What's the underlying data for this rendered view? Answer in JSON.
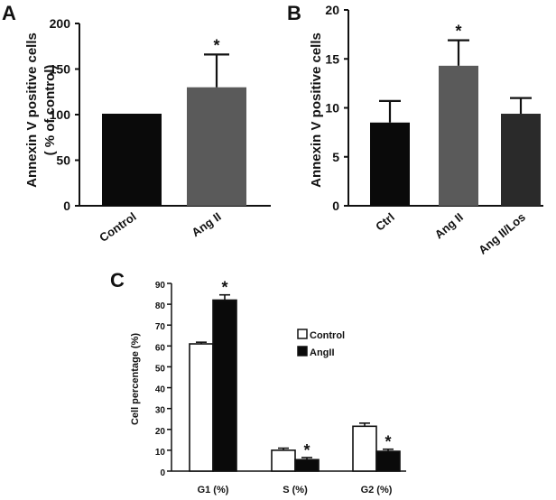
{
  "panels": [
    {
      "label": "A"
    },
    {
      "label": "B"
    },
    {
      "label": "C"
    }
  ],
  "chart_data": [
    {
      "type": "bar",
      "panel": "A",
      "ylabel": "Annexin V positive cells",
      "ylabel2": "( % of control)",
      "ylim": [
        0,
        200
      ],
      "yticks": [
        0,
        50,
        100,
        150,
        200
      ],
      "categories": [
        "Control",
        "Ang II"
      ],
      "values": [
        101,
        130
      ],
      "errors": [
        0,
        36
      ],
      "colors": [
        "#0a0a0a",
        "#5a5a5a"
      ],
      "annotations": [
        "",
        "*"
      ]
    },
    {
      "type": "bar",
      "panel": "B",
      "ylabel": "Annexin V positive cells",
      "ylim": [
        0,
        20
      ],
      "yticks": [
        0,
        5,
        10,
        15,
        20
      ],
      "categories": [
        "Ctrl",
        "Ang II",
        "Ang II/Los"
      ],
      "values": [
        8.5,
        14.3,
        9.4
      ],
      "errors": [
        2.2,
        2.6,
        1.6
      ],
      "colors": [
        "#0a0a0a",
        "#5a5a5a",
        "#2a2a2a"
      ],
      "annotations": [
        "",
        "*",
        ""
      ]
    },
    {
      "type": "bar",
      "panel": "C",
      "ylabel": "Cell percentage (%)",
      "ylim": [
        0,
        90
      ],
      "yticks": [
        0,
        10,
        20,
        30,
        40,
        50,
        60,
        70,
        80,
        90
      ],
      "categories": [
        "G1 (%)",
        "S (%)",
        "G2 (%)"
      ],
      "legend_position": "middle-right",
      "series": [
        {
          "name": "Control",
          "values": [
            61,
            10,
            21.5
          ],
          "errors": [
            0.8,
            1.0,
            1.5
          ],
          "color": "#ffffff",
          "annotations": [
            "",
            "",
            ""
          ]
        },
        {
          "name": "AngII",
          "values": [
            82,
            5.5,
            9.5
          ],
          "errors": [
            2.5,
            1.0,
            1.0
          ],
          "color": "#0a0a0a",
          "annotations": [
            "*",
            "*",
            "*"
          ]
        }
      ]
    }
  ]
}
